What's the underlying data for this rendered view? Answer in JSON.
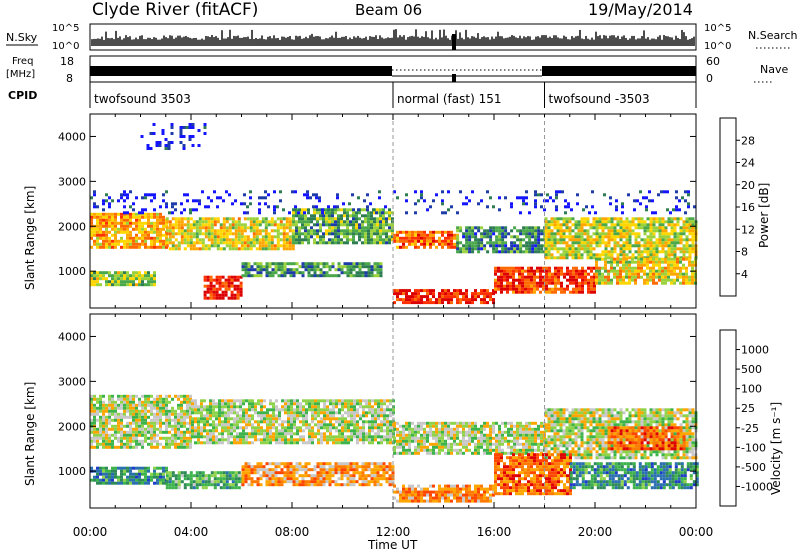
{
  "header": {
    "station": "Clyde River (fitACF)",
    "beam": "Beam 06",
    "date": "19/May/2014"
  },
  "strips": {
    "nsky_label": "N.Sky",
    "nsky_ticks": [
      "10^5",
      "10^0"
    ],
    "nsearch_label": "N.Search",
    "freq_label_1": "Freq",
    "freq_label_2": "[MHz]",
    "freq_ticks": [
      "18",
      "8"
    ],
    "nave_ticks": [
      "60",
      "0"
    ],
    "nave_label": "Nave",
    "cpid_label": "CPID"
  },
  "cpid_segments": [
    {
      "label": "twofsound 3503",
      "start_hour": 0
    },
    {
      "label": "normal (fast) 151",
      "start_hour": 12
    },
    {
      "label": "twofsound -3503",
      "start_hour": 18
    }
  ],
  "chart_data": [
    {
      "type": "heatmap",
      "title": "Power",
      "xlabel": "Time UT",
      "ylabel": "Slant Range [km]",
      "xlim_hours": [
        0,
        24
      ],
      "ylim_km": [
        180,
        4500
      ],
      "x_tick_labels": [
        "00:00",
        "04:00",
        "08:00",
        "12:00",
        "16:00",
        "20:00",
        "00:00"
      ],
      "y_ticks": [
        1000,
        2000,
        3000,
        4000
      ],
      "colorbar": {
        "label": "Power [dB]",
        "ticks": [
          "4",
          "8",
          "12",
          "16",
          "20",
          "24",
          "28"
        ],
        "colors": [
          "#1414ff",
          "#1e3ca8",
          "#2e7d52",
          "#4aa84a",
          "#9bd23c",
          "#ffd700",
          "#ffa500",
          "#ff6a00",
          "#ff3000",
          "#dd0000"
        ]
      },
      "bands": [
        {
          "t0": 0.0,
          "t1": 3.0,
          "r0": 1500,
          "r1": 2300,
          "level": 0.65
        },
        {
          "t0": 3.0,
          "t1": 8.0,
          "r0": 1500,
          "r1": 2200,
          "level": 0.55
        },
        {
          "t0": 8.0,
          "t1": 12.0,
          "r0": 1600,
          "r1": 2400,
          "level": 0.35
        },
        {
          "t0": 12.0,
          "t1": 14.5,
          "r0": 1500,
          "r1": 1900,
          "level": 0.75
        },
        {
          "t0": 14.5,
          "t1": 18.0,
          "r0": 1400,
          "r1": 2000,
          "level": 0.25
        },
        {
          "t0": 18.0,
          "t1": 24.0,
          "r0": 1300,
          "r1": 2200,
          "level": 0.5
        },
        {
          "t0": 0.0,
          "t1": 2.5,
          "r0": 700,
          "r1": 1000,
          "level": 0.45
        },
        {
          "t0": 4.5,
          "t1": 6.0,
          "r0": 400,
          "r1": 900,
          "level": 0.9
        },
        {
          "t0": 6.0,
          "t1": 11.5,
          "r0": 900,
          "r1": 1200,
          "level": 0.3
        },
        {
          "t0": 12.0,
          "t1": 16.0,
          "r0": 300,
          "r1": 600,
          "level": 0.92
        },
        {
          "t0": 16.0,
          "t1": 20.0,
          "r0": 500,
          "r1": 1100,
          "level": 0.85
        },
        {
          "t0": 20.0,
          "t1": 24.0,
          "r0": 700,
          "r1": 1300,
          "level": 0.55
        },
        {
          "t0": 0.0,
          "t1": 24.0,
          "r0": 2300,
          "r1": 2800,
          "level": 0.08
        },
        {
          "t0": 2.0,
          "t1": 4.5,
          "r0": 3700,
          "r1": 4300,
          "level": 0.05
        }
      ]
    },
    {
      "type": "heatmap",
      "title": "Velocity",
      "xlabel": "Time UT",
      "ylabel": "Slant Range [km]",
      "xlim_hours": [
        0,
        24
      ],
      "ylim_km": [
        180,
        4500
      ],
      "x_tick_labels": [
        "00:00",
        "04:00",
        "08:00",
        "12:00",
        "16:00",
        "20:00",
        "00:00"
      ],
      "y_ticks": [
        1000,
        2000,
        3000,
        4000
      ],
      "colorbar": {
        "label": "Velocity [m s⁻¹]",
        "ticks": [
          "1000",
          "500",
          "100",
          "25",
          "-25",
          "-100",
          "-500",
          "-1000"
        ],
        "colors": [
          "#1e3cc8",
          "#2a6fb0",
          "#2e8b57",
          "#3cb44b",
          "#8fd34a",
          "#c8c8c8",
          "#ffa500",
          "#ff7a00",
          "#ff4500",
          "#e00000"
        ]
      },
      "bands": [
        {
          "t0": 0.0,
          "t1": 4.0,
          "r0": 1500,
          "r1": 2700,
          "level": 0.5
        },
        {
          "t0": 4.0,
          "t1": 12.0,
          "r0": 1600,
          "r1": 2600,
          "level": 0.5
        },
        {
          "t0": 12.0,
          "t1": 18.0,
          "r0": 1400,
          "r1": 2100,
          "level": 0.5
        },
        {
          "t0": 18.0,
          "t1": 24.0,
          "r0": 1300,
          "r1": 2400,
          "level": 0.5
        },
        {
          "t0": 0.0,
          "t1": 3.0,
          "r0": 700,
          "r1": 1100,
          "level": 0.25
        },
        {
          "t0": 3.0,
          "t1": 6.0,
          "r0": 600,
          "r1": 1000,
          "level": 0.35
        },
        {
          "t0": 6.0,
          "t1": 12.0,
          "r0": 700,
          "r1": 1200,
          "level": 0.7
        },
        {
          "t0": 12.0,
          "t1": 16.0,
          "r0": 300,
          "r1": 700,
          "level": 0.72
        },
        {
          "t0": 16.0,
          "t1": 19.0,
          "r0": 500,
          "r1": 1400,
          "level": 0.78
        },
        {
          "t0": 19.0,
          "t1": 24.0,
          "r0": 600,
          "r1": 1200,
          "level": 0.25
        },
        {
          "t0": 20.5,
          "t1": 23.5,
          "r0": 1500,
          "r1": 2000,
          "level": 0.8
        }
      ]
    }
  ]
}
